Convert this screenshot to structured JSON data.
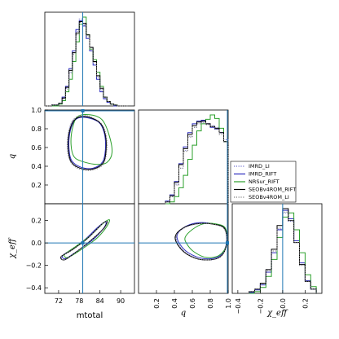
{
  "chart_data": {
    "type": "corner",
    "params": [
      "mtotal",
      "q",
      "χ_eff"
    ],
    "axis_labels": {
      "mtotal": "mtotal",
      "q_x": "q",
      "q_y": "q",
      "chi_x": "χ_eff",
      "chi_y": "χ_eff"
    },
    "ranges": {
      "mtotal": [
        68,
        94
      ],
      "q": [
        0.0,
        1.0
      ],
      "chi": [
        -0.45,
        0.35
      ]
    },
    "ticks": {
      "mtotal": [
        "72",
        "78",
        "84",
        "90"
      ],
      "q_x": [
        "0.2",
        "0.4",
        "0.6",
        "0.8",
        "1.0"
      ],
      "q_y": [
        "0.2",
        "0.4",
        "0.6",
        "0.8",
        "1.0"
      ],
      "chi_x": [
        "−0.4",
        "−0.2",
        "0.0",
        "0.2"
      ],
      "chi_y": [
        "−0.4",
        "−0.2",
        "0.0",
        "0.2"
      ]
    },
    "truth": {
      "mtotal": 79.0,
      "q": 1.0,
      "chi": 0.0
    },
    "series": [
      {
        "name": "IMRD_LI",
        "color": "#7070d0",
        "dash": "dot"
      },
      {
        "name": "IMRD_RIFT",
        "color": "#2b2bbf",
        "dash": "solid"
      },
      {
        "name": "NRSur_RIFT",
        "color": "#2ca02c",
        "dash": "solid"
      },
      {
        "name": "SEOBv4ROM_RIFT",
        "color": "#000000",
        "dash": "solid"
      },
      {
        "name": "SEOBv4ROM_LI",
        "color": "#7f7f7f",
        "dash": "dot"
      }
    ],
    "hist_mtotal": {
      "bins": [
        68,
        70,
        72,
        73,
        74,
        75,
        76,
        77,
        78,
        79,
        80,
        81,
        82,
        83,
        84,
        85,
        86,
        87,
        88,
        89,
        90,
        92
      ],
      "IMRD_LI": [
        0.0,
        0.01,
        0.03,
        0.08,
        0.2,
        0.38,
        0.6,
        0.84,
        0.98,
        0.92,
        0.78,
        0.66,
        0.5,
        0.32,
        0.18,
        0.09,
        0.04,
        0.02,
        0.01,
        0.0,
        0.0
      ],
      "IMRD_RIFT": [
        0.0,
        0.01,
        0.03,
        0.1,
        0.22,
        0.42,
        0.62,
        0.86,
        0.96,
        0.9,
        0.76,
        0.62,
        0.46,
        0.3,
        0.16,
        0.08,
        0.04,
        0.02,
        0.0,
        0.0,
        0.0
      ],
      "NRSur_RIFT": [
        0.0,
        0.0,
        0.02,
        0.06,
        0.16,
        0.3,
        0.5,
        0.72,
        0.92,
        1.0,
        0.8,
        0.64,
        0.52,
        0.38,
        0.22,
        0.1,
        0.05,
        0.02,
        0.01,
        0.0,
        0.0
      ],
      "SEOBv4ROM_RIFT": [
        0.0,
        0.01,
        0.03,
        0.09,
        0.21,
        0.4,
        0.6,
        0.82,
        0.95,
        0.93,
        0.8,
        0.66,
        0.5,
        0.34,
        0.2,
        0.1,
        0.05,
        0.02,
        0.01,
        0.0,
        0.0
      ],
      "SEOBv4ROM_LI": [
        0.0,
        0.01,
        0.03,
        0.08,
        0.19,
        0.37,
        0.58,
        0.8,
        0.94,
        0.91,
        0.78,
        0.64,
        0.49,
        0.33,
        0.19,
        0.1,
        0.05,
        0.02,
        0.01,
        0.0,
        0.0
      ]
    },
    "hist_q": {
      "bins": [
        0.3,
        0.35,
        0.4,
        0.45,
        0.5,
        0.55,
        0.6,
        0.65,
        0.7,
        0.75,
        0.8,
        0.85,
        0.9,
        0.95,
        1.0
      ],
      "IMRD_LI": [
        0.02,
        0.08,
        0.22,
        0.4,
        0.6,
        0.76,
        0.86,
        0.9,
        0.92,
        0.9,
        0.88,
        0.86,
        0.8,
        0.72
      ],
      "IMRD_RIFT": [
        0.03,
        0.1,
        0.25,
        0.45,
        0.64,
        0.8,
        0.9,
        0.93,
        0.94,
        0.9,
        0.86,
        0.84,
        0.8,
        0.7
      ],
      "NRSur_RIFT": [
        0.0,
        0.02,
        0.08,
        0.18,
        0.32,
        0.5,
        0.66,
        0.82,
        0.9,
        0.95,
        1.0,
        0.96,
        0.85,
        0.7
      ],
      "SEOBv4ROM_RIFT": [
        0.02,
        0.09,
        0.24,
        0.44,
        0.62,
        0.78,
        0.88,
        0.92,
        0.93,
        0.9,
        0.87,
        0.85,
        0.8,
        0.7
      ],
      "SEOBv4ROM_LI": [
        0.02,
        0.08,
        0.21,
        0.4,
        0.59,
        0.75,
        0.86,
        0.9,
        0.91,
        0.89,
        0.87,
        0.84,
        0.78,
        0.7
      ]
    },
    "hist_chi": {
      "bins": [
        -0.3,
        -0.25,
        -0.2,
        -0.15,
        -0.1,
        -0.05,
        0.0,
        0.05,
        0.1,
        0.15,
        0.2,
        0.25,
        0.3
      ],
      "IMRD_LI": [
        0.02,
        0.05,
        0.12,
        0.28,
        0.5,
        0.76,
        0.95,
        0.85,
        0.6,
        0.34,
        0.14,
        0.05
      ],
      "IMRD_RIFT": [
        0.01,
        0.04,
        0.1,
        0.25,
        0.48,
        0.75,
        0.98,
        0.88,
        0.62,
        0.36,
        0.15,
        0.05
      ],
      "NRSur_RIFT": [
        0.0,
        0.02,
        0.07,
        0.2,
        0.4,
        0.66,
        0.9,
        0.95,
        0.75,
        0.48,
        0.22,
        0.08
      ],
      "SEOBv4ROM_RIFT": [
        0.02,
        0.05,
        0.12,
        0.28,
        0.52,
        0.8,
        1.0,
        0.86,
        0.6,
        0.34,
        0.14,
        0.05
      ],
      "SEOBv4ROM_LI": [
        0.02,
        0.05,
        0.11,
        0.27,
        0.5,
        0.77,
        0.96,
        0.86,
        0.6,
        0.33,
        0.14,
        0.05
      ]
    },
    "contours_mtotal_q": {
      "IMRD_LI": [
        [
          75.5,
          0.45
        ],
        [
          78,
          0.38
        ],
        [
          82,
          0.37
        ],
        [
          85,
          0.44
        ],
        [
          86,
          0.6
        ],
        [
          85.5,
          0.75
        ],
        [
          84,
          0.86
        ],
        [
          80,
          0.93
        ],
        [
          76.5,
          0.9
        ],
        [
          75,
          0.78
        ],
        [
          74.6,
          0.6
        ]
      ],
      "IMRD_RIFT": [
        [
          75.8,
          0.46
        ],
        [
          78.5,
          0.39
        ],
        [
          82,
          0.38
        ],
        [
          84.8,
          0.45
        ],
        [
          85.6,
          0.6
        ],
        [
          85.2,
          0.76
        ],
        [
          83.6,
          0.87
        ],
        [
          80,
          0.92
        ],
        [
          77,
          0.9
        ],
        [
          75.4,
          0.78
        ],
        [
          75,
          0.6
        ]
      ],
      "NRSur_RIFT": [
        [
          76.5,
          0.5
        ],
        [
          79,
          0.45
        ],
        [
          83,
          0.42
        ],
        [
          86,
          0.44
        ],
        [
          87.5,
          0.55
        ],
        [
          86.5,
          0.75
        ],
        [
          84.5,
          0.9
        ],
        [
          81,
          0.95
        ],
        [
          77.5,
          0.93
        ],
        [
          76,
          0.8
        ],
        [
          75.6,
          0.63
        ]
      ],
      "SEOBv4ROM_RIFT": [
        [
          75.6,
          0.45
        ],
        [
          78.2,
          0.38
        ],
        [
          82,
          0.37
        ],
        [
          85,
          0.44
        ],
        [
          85.8,
          0.6
        ],
        [
          85.4,
          0.76
        ],
        [
          83.8,
          0.87
        ],
        [
          80,
          0.93
        ],
        [
          76.8,
          0.9
        ],
        [
          75.2,
          0.78
        ],
        [
          74.8,
          0.6
        ]
      ],
      "SEOBv4ROM_LI": [
        [
          75.4,
          0.45
        ],
        [
          78,
          0.37
        ],
        [
          82,
          0.36
        ],
        [
          85.1,
          0.43
        ],
        [
          86,
          0.6
        ],
        [
          85.6,
          0.76
        ],
        [
          84,
          0.87
        ],
        [
          80,
          0.94
        ],
        [
          76.6,
          0.91
        ],
        [
          75,
          0.78
        ],
        [
          74.5,
          0.6
        ]
      ]
    },
    "contours_mtotal_chi": {
      "IMRD_LI": [
        [
          73,
          -0.12
        ],
        [
          76,
          -0.06
        ],
        [
          80,
          0.03
        ],
        [
          83,
          0.12
        ],
        [
          85,
          0.18
        ],
        [
          86,
          0.19
        ],
        [
          85,
          0.13
        ],
        [
          82,
          0.04
        ],
        [
          78,
          -0.06
        ],
        [
          74.5,
          -0.14
        ],
        [
          73.3,
          -0.15
        ]
      ],
      "IMRD_RIFT": [
        [
          73.2,
          -0.11
        ],
        [
          76.2,
          -0.05
        ],
        [
          80,
          0.04
        ],
        [
          83,
          0.13
        ],
        [
          85,
          0.18
        ],
        [
          85.8,
          0.18
        ],
        [
          84.8,
          0.12
        ],
        [
          82,
          0.03
        ],
        [
          78,
          -0.06
        ],
        [
          74.6,
          -0.13
        ],
        [
          73.5,
          -0.14
        ]
      ],
      "NRSur_RIFT": [
        [
          73.8,
          -0.1
        ],
        [
          77,
          -0.03
        ],
        [
          81,
          0.06
        ],
        [
          84,
          0.15
        ],
        [
          86,
          0.2
        ],
        [
          86.8,
          0.2
        ],
        [
          85.6,
          0.13
        ],
        [
          83,
          0.04
        ],
        [
          79,
          -0.05
        ],
        [
          75.4,
          -0.12
        ],
        [
          74.1,
          -0.13
        ]
      ],
      "SEOBv4ROM_RIFT": [
        [
          72.8,
          -0.12
        ],
        [
          76,
          -0.06
        ],
        [
          80,
          0.03
        ],
        [
          83,
          0.12
        ],
        [
          85,
          0.18
        ],
        [
          86.1,
          0.19
        ],
        [
          85.1,
          0.13
        ],
        [
          82,
          0.04
        ],
        [
          78,
          -0.06
        ],
        [
          74.4,
          -0.14
        ],
        [
          73.1,
          -0.15
        ]
      ],
      "SEOBv4ROM_LI": [
        [
          72.7,
          -0.12
        ],
        [
          75.9,
          -0.06
        ],
        [
          80,
          0.03
        ],
        [
          83,
          0.12
        ],
        [
          85,
          0.18
        ],
        [
          86.2,
          0.19
        ],
        [
          85.2,
          0.13
        ],
        [
          82,
          0.04
        ],
        [
          78,
          -0.06
        ],
        [
          74.3,
          -0.14
        ],
        [
          73,
          -0.15
        ]
      ]
    },
    "contours_q_chi": {
      "IMRD_LI": [
        [
          0.42,
          0.06
        ],
        [
          0.5,
          0.13
        ],
        [
          0.65,
          0.17
        ],
        [
          0.82,
          0.17
        ],
        [
          0.96,
          0.13
        ],
        [
          0.98,
          -0.02
        ],
        [
          0.9,
          -0.13
        ],
        [
          0.72,
          -0.15
        ],
        [
          0.55,
          -0.1
        ],
        [
          0.45,
          -0.02
        ]
      ],
      "IMRD_RIFT": [
        [
          0.43,
          0.07
        ],
        [
          0.51,
          0.14
        ],
        [
          0.66,
          0.18
        ],
        [
          0.83,
          0.17
        ],
        [
          0.96,
          0.13
        ],
        [
          0.98,
          -0.01
        ],
        [
          0.9,
          -0.12
        ],
        [
          0.73,
          -0.14
        ],
        [
          0.56,
          -0.09
        ],
        [
          0.46,
          -0.01
        ]
      ],
      "NRSur_RIFT": [
        [
          0.52,
          0.05
        ],
        [
          0.6,
          0.12
        ],
        [
          0.72,
          0.17
        ],
        [
          0.86,
          0.17
        ],
        [
          0.97,
          0.13
        ],
        [
          0.98,
          -0.02
        ],
        [
          0.9,
          -0.11
        ],
        [
          0.76,
          -0.13
        ],
        [
          0.62,
          -0.08
        ],
        [
          0.54,
          -0.01
        ]
      ],
      "SEOBv4ROM_RIFT": [
        [
          0.41,
          0.06
        ],
        [
          0.49,
          0.13
        ],
        [
          0.64,
          0.17
        ],
        [
          0.81,
          0.17
        ],
        [
          0.96,
          0.13
        ],
        [
          0.98,
          -0.02
        ],
        [
          0.9,
          -0.13
        ],
        [
          0.71,
          -0.15
        ],
        [
          0.54,
          -0.1
        ],
        [
          0.44,
          -0.02
        ]
      ],
      "SEOBv4ROM_LI": [
        [
          0.42,
          0.06
        ],
        [
          0.5,
          0.13
        ],
        [
          0.65,
          0.17
        ],
        [
          0.82,
          0.17
        ],
        [
          0.96,
          0.12
        ],
        [
          0.98,
          -0.02
        ],
        [
          0.9,
          -0.13
        ],
        [
          0.72,
          -0.15
        ],
        [
          0.55,
          -0.1
        ],
        [
          0.45,
          -0.02
        ]
      ]
    }
  }
}
